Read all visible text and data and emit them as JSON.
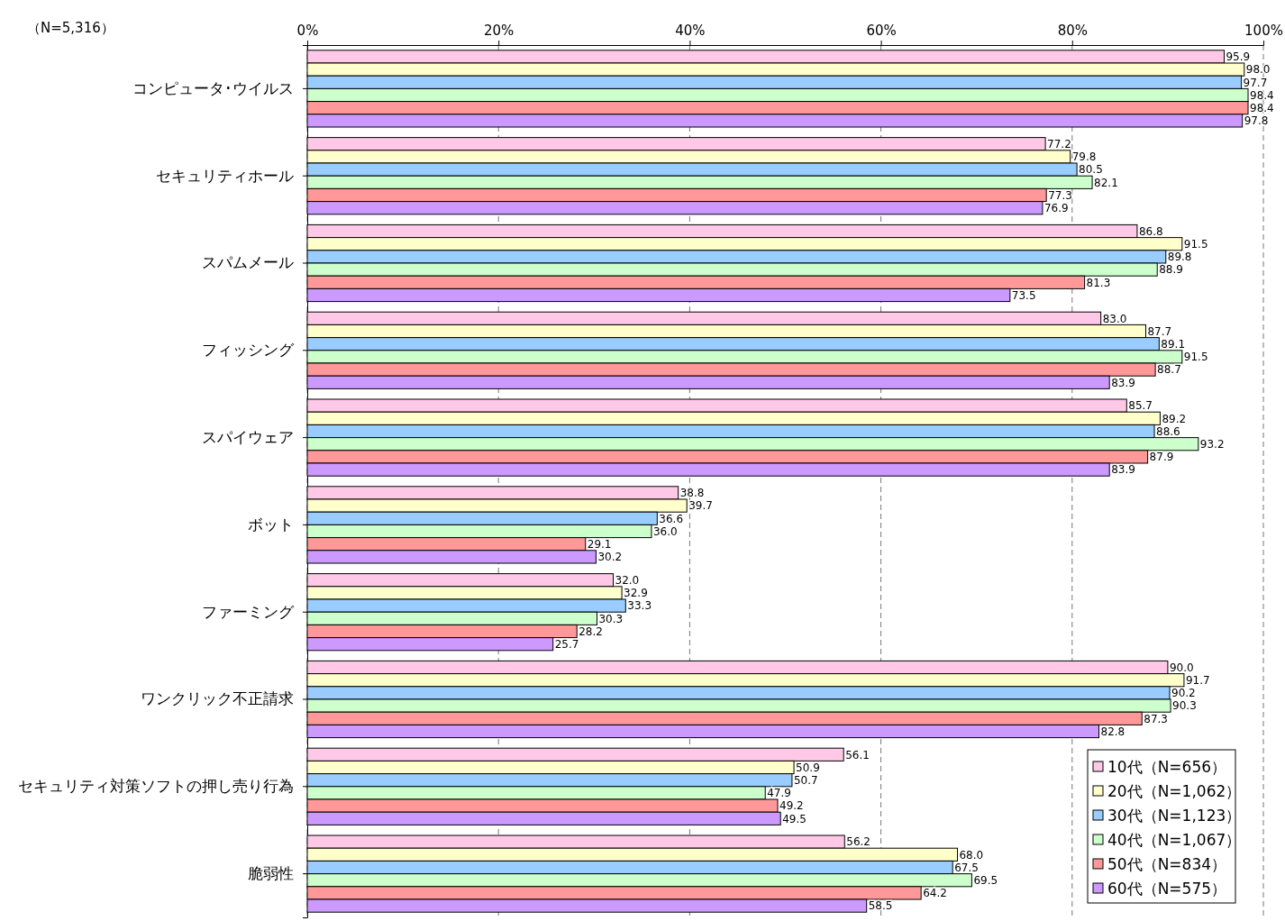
{
  "chart_data": {
    "type": "bar",
    "orientation": "horizontal",
    "annotations": [
      "（N=5,316）"
    ],
    "categories": [
      "コンピュータ･ウイルス",
      "セキュリティホール",
      "スパムメール",
      "フィッシング",
      "スパイウェア",
      "ボット",
      "ファーミング",
      "ワンクリック不正請求",
      "セキュリティ対策ソフトの押し売り行為",
      "脆弱性"
    ],
    "series": [
      {
        "name": "10代（N=656）",
        "color": "#ffc8e6",
        "values": [
          95.9,
          77.2,
          86.8,
          83.0,
          85.7,
          38.8,
          32.0,
          90.0,
          56.1,
          56.2
        ],
        "value_labels": [
          "95.9",
          "77.2",
          "86.8",
          "83.0",
          "85.7",
          "38.8",
          "32.0",
          "90.0",
          "56.1",
          "56.2"
        ]
      },
      {
        "name": "20代（N=1,062）",
        "color": "#ffffcc",
        "values": [
          98.0,
          79.8,
          91.5,
          87.7,
          89.2,
          39.7,
          32.9,
          91.7,
          50.9,
          68.0
        ],
        "value_labels": [
          "98.0",
          "79.8",
          "91.5",
          "87.7",
          "89.2",
          "39.7",
          "32.9",
          "91.7",
          "50.9",
          "68.0"
        ]
      },
      {
        "name": "30代（N=1,123）",
        "color": "#99ccff",
        "values": [
          97.7,
          80.5,
          89.8,
          89.1,
          88.6,
          36.6,
          33.3,
          90.2,
          50.7,
          67.5
        ],
        "value_labels": [
          "97.7",
          "80.5",
          "89.8",
          "89.1",
          "88.6",
          "36.6",
          "33.3",
          "90.2",
          "50.7",
          "67.5"
        ]
      },
      {
        "name": "40代（N=1,067）",
        "color": "#ccffcc",
        "values": [
          98.4,
          82.1,
          88.9,
          91.5,
          93.2,
          36.0,
          30.3,
          90.3,
          47.9,
          69.5
        ],
        "value_labels": [
          "98.4",
          "82.1",
          "88.9",
          "91.5",
          "93.2",
          "36.0",
          "30.3",
          "90.3",
          "47.9",
          "69.5"
        ]
      },
      {
        "name": "50代（N=834）",
        "color": "#ff9999",
        "values": [
          98.4,
          77.3,
          81.3,
          88.7,
          87.9,
          29.1,
          28.2,
          87.3,
          49.2,
          64.2
        ],
        "value_labels": [
          "98.4",
          "77.3",
          "81.3",
          "88.7",
          "87.9",
          "29.1",
          "28.2",
          "87.3",
          "49.2",
          "64.2"
        ]
      },
      {
        "name": "60代（N=575）",
        "color": "#cc99ff",
        "values": [
          97.8,
          76.9,
          73.5,
          83.9,
          83.9,
          30.2,
          25.7,
          82.8,
          49.5,
          58.5
        ],
        "value_labels": [
          "97.8",
          "76.9",
          "73.5",
          "83.9",
          "83.9",
          "30.2",
          "25.7",
          "82.8",
          "49.5",
          "58.5"
        ]
      }
    ],
    "xlim": [
      0,
      100
    ],
    "xticks": [
      {
        "value": 0,
        "label": "0%"
      },
      {
        "value": 20,
        "label": "20%"
      },
      {
        "value": 40,
        "label": "40%"
      },
      {
        "value": 60,
        "label": "60%"
      },
      {
        "value": 80,
        "label": "80%"
      },
      {
        "value": 100,
        "label": "100%"
      }
    ],
    "grid": "x",
    "legend": "bottom right"
  }
}
